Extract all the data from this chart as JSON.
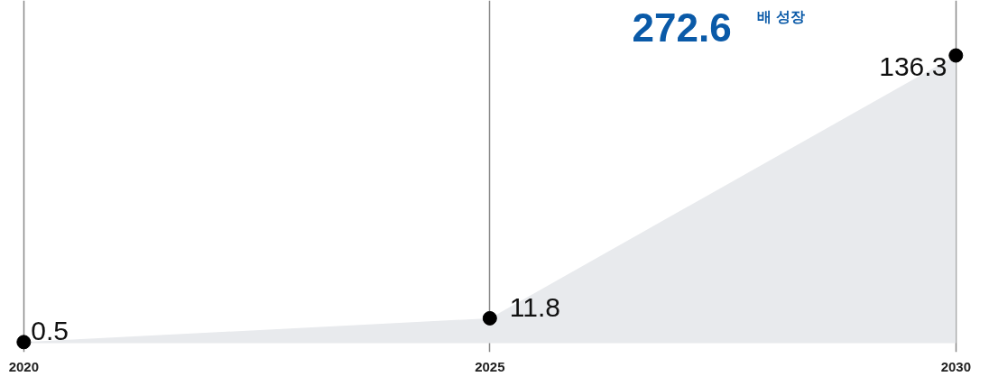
{
  "chart_data": {
    "type": "area",
    "categories": [
      "2020",
      "2025",
      "2030"
    ],
    "series": [
      {
        "color": "#e8eaed",
        "values": [
          0.5,
          11.8,
          136.3
        ]
      }
    ],
    "data_labels": true,
    "marker": "circle",
    "grid": "x",
    "tick_labels": "x",
    "annotations": [
      "272.6 배 성장"
    ]
  }
}
